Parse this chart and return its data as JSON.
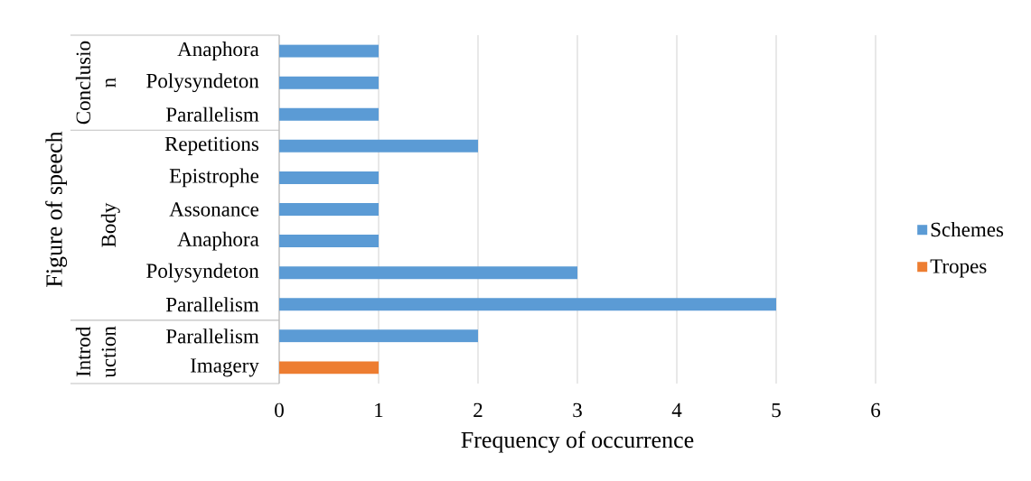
{
  "chart_data": {
    "type": "bar",
    "orientation": "horizontal",
    "stacked": true,
    "xlabel": "Frequency of occurrence",
    "ylabel": "Figure of speech",
    "categories": [
      "Anaphora",
      "Polysyndeton",
      "Parallelism",
      "Repetitions",
      "Epistrophe",
      "Assonance",
      "Anaphora",
      "Polysyndeton",
      "Parallelism",
      "Parallelism",
      "Imagery"
    ],
    "series": [
      {
        "name": "Schemes",
        "color": "#5b9bd5",
        "values": [
          1,
          1,
          1,
          2,
          1,
          1,
          1,
          3,
          5,
          2,
          null
        ]
      },
      {
        "name": "Tropes",
        "color": "#ed7d31",
        "values": [
          null,
          null,
          null,
          null,
          null,
          null,
          null,
          null,
          null,
          null,
          1
        ]
      }
    ],
    "xlim": [
      0,
      6
    ],
    "xticks": [
      0,
      1,
      2,
      3,
      4,
      5,
      6
    ],
    "grid": "x",
    "legend": "right",
    "annotations": [
      "Conclusion",
      "Body",
      "Introduction"
    ]
  }
}
